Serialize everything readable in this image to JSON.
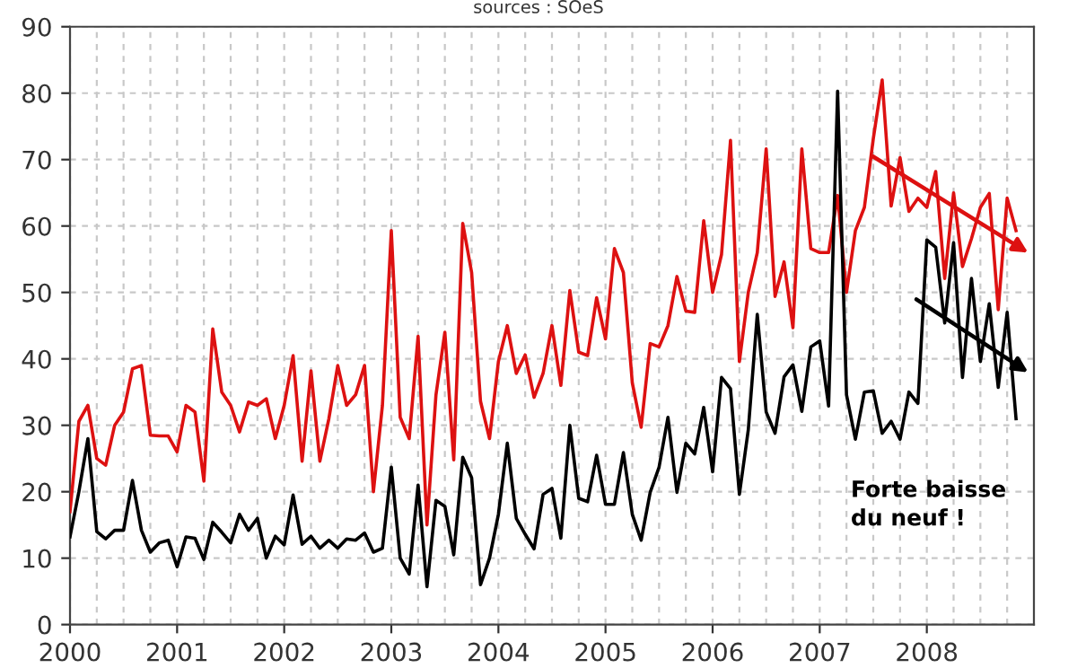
{
  "chart_data": {
    "type": "line",
    "annotations": [
      "sources : SOeS",
      "Forte baisse\ndu neuf !"
    ],
    "x": [
      2000,
      2000.083,
      2000.167,
      2000.25,
      2000.333,
      2000.417,
      2000.5,
      2000.583,
      2000.667,
      2000.75,
      2000.833,
      2000.917,
      2001,
      2001.083,
      2001.167,
      2001.25,
      2001.333,
      2001.417,
      2001.5,
      2001.583,
      2001.667,
      2001.75,
      2001.833,
      2001.917,
      2002,
      2002.083,
      2002.167,
      2002.25,
      2002.333,
      2002.417,
      2002.5,
      2002.583,
      2002.667,
      2002.75,
      2002.833,
      2002.917,
      2003,
      2003.083,
      2003.167,
      2003.25,
      2003.333,
      2003.417,
      2003.5,
      2003.583,
      2003.667,
      2003.75,
      2003.833,
      2003.917,
      2004,
      2004.083,
      2004.167,
      2004.25,
      2004.333,
      2004.417,
      2004.5,
      2004.583,
      2004.667,
      2004.75,
      2004.833,
      2004.917,
      2005,
      2005.083,
      2005.167,
      2005.25,
      2005.333,
      2005.417,
      2005.5,
      2005.583,
      2005.667,
      2005.75,
      2005.833,
      2005.917,
      2006,
      2006.083,
      2006.167,
      2006.25,
      2006.333,
      2006.417,
      2006.5,
      2006.583,
      2006.667,
      2006.75,
      2006.833,
      2006.917,
      2007,
      2007.083,
      2007.167,
      2007.25,
      2007.333,
      2007.417,
      2007.5,
      2007.583,
      2007.667,
      2007.75,
      2007.833,
      2007.917,
      2008,
      2008.083,
      2008.167,
      2008.25,
      2008.333,
      2008.417,
      2008.5,
      2008.583,
      2008.667,
      2008.75,
      2008.833
    ],
    "series": [
      {
        "color": "#dd1111",
        "values": [
          17,
          30.6,
          33,
          25,
          24,
          30,
          32,
          38.5,
          39,
          28.5,
          28.4,
          28.4,
          26,
          33,
          32,
          21.6,
          44.5,
          35,
          33,
          29,
          33.5,
          33,
          34,
          28,
          33,
          40.5,
          24.6,
          38.2,
          24.6,
          31,
          39,
          33,
          34.6,
          39,
          20,
          33,
          59.3,
          31.2,
          28,
          43.4,
          15,
          34.6,
          44,
          24.8,
          60.4,
          53,
          33.6,
          28,
          39.6,
          45,
          37.8,
          40.6,
          34.2,
          37.8,
          45,
          36,
          50.3,
          41,
          40.5,
          49.2,
          43,
          56.6,
          53,
          36.4,
          29.7,
          42.3,
          41.8,
          45,
          52.4,
          47.2,
          47,
          60.8,
          50,
          55.7,
          72.9,
          39.6,
          50,
          56,
          71.6,
          49.4,
          54.6,
          44.7,
          71.6,
          56.6,
          56,
          56,
          64.6,
          50,
          59.3,
          62.8,
          73.1,
          82,
          63,
          70.3,
          62.2,
          64.2,
          62.8,
          68.2,
          52.1,
          65,
          53.9,
          58.1,
          62.8,
          64.9,
          47.4,
          64.2,
          59.3
        ]
      },
      {
        "color": "#000000",
        "values": [
          13.2,
          20,
          28,
          14,
          12.9,
          14.2,
          14.2,
          21.7,
          14.2,
          10.9,
          12.3,
          12.7,
          8.7,
          13.2,
          13,
          9.8,
          15.4,
          13.9,
          12.3,
          16.6,
          14.2,
          16,
          10,
          13.3,
          12,
          19.5,
          12.1,
          13.3,
          11.5,
          12.7,
          11.5,
          12.9,
          12.7,
          13.8,
          10.9,
          11.5,
          23.7,
          10,
          7.6,
          21,
          5.7,
          18.7,
          17.8,
          10.5,
          25.2,
          22.1,
          6,
          10,
          16.6,
          27.3,
          16,
          13.6,
          11.4,
          19.6,
          20.5,
          13,
          30,
          19,
          18.5,
          25.5,
          18.1,
          18.1,
          25.9,
          16.6,
          12.7,
          19.9,
          23.7,
          31.2,
          19.9,
          27.3,
          25.7,
          32.7,
          23,
          37.2,
          35.5,
          19.6,
          29.3,
          46.7,
          32,
          28.8,
          37.3,
          39.1,
          32.1,
          41.8,
          42.7,
          32.9,
          80.3,
          34.6,
          27.9,
          35,
          35.2,
          28.8,
          30.6,
          27.9,
          35,
          33.3,
          57.9,
          56.8,
          45.4,
          57.5,
          37.2,
          52.1,
          39.6,
          48.3,
          35.7,
          47,
          31
        ]
      }
    ],
    "xlim": [
      2000,
      2009
    ],
    "ylim": [
      0,
      90
    ],
    "xticks": [
      2000,
      {
        "value": 2000.25,
        "label": null
      },
      {
        "value": 2000.5,
        "label": null
      },
      {
        "value": 2000.75,
        "label": null
      },
      2001,
      {
        "value": 2001.25,
        "label": null
      },
      {
        "value": 2001.5,
        "label": null
      },
      {
        "value": 2001.75,
        "label": null
      },
      2002,
      {
        "value": 2002.25,
        "label": null
      },
      {
        "value": 2002.5,
        "label": null
      },
      {
        "value": 2002.75,
        "label": null
      },
      2003,
      {
        "value": 2003.25,
        "label": null
      },
      {
        "value": 2003.5,
        "label": null
      },
      {
        "value": 2003.75,
        "label": null
      },
      2004,
      {
        "value": 2004.25,
        "label": null
      },
      {
        "value": 2004.5,
        "label": null
      },
      {
        "value": 2004.75,
        "label": null
      },
      2005,
      {
        "value": 2005.25,
        "label": null
      },
      {
        "value": 2005.5,
        "label": null
      },
      {
        "value": 2005.75,
        "label": null
      },
      2006,
      {
        "value": 2006.25,
        "label": null
      },
      {
        "value": 2006.5,
        "label": null
      },
      {
        "value": 2006.75,
        "label": null
      },
      2007,
      {
        "value": 2007.25,
        "label": null
      },
      {
        "value": 2007.5,
        "label": null
      },
      {
        "value": 2007.75,
        "label": null
      },
      2008,
      {
        "value": 2008.25,
        "label": null
      },
      {
        "value": 2008.5,
        "label": null
      },
      {
        "value": 2008.75,
        "label": null
      }
    ],
    "yticks": [
      0,
      10,
      20,
      30,
      40,
      50,
      60,
      70,
      80,
      90
    ],
    "grid": true,
    "line_style": "solid",
    "marker": "none"
  }
}
